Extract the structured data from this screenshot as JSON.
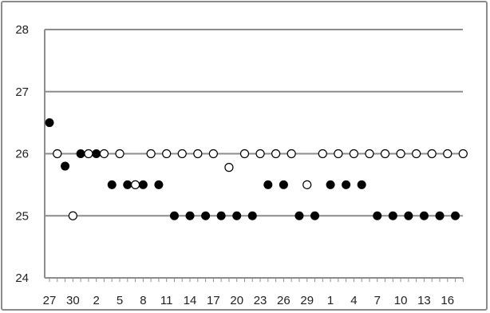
{
  "chart_data": {
    "type": "scatter",
    "title": "",
    "xlabel": "",
    "ylabel": "",
    "ylim": [
      24,
      28
    ],
    "y_ticks": [
      "24",
      "25",
      "26",
      "27",
      "28"
    ],
    "x_tick_labels": [
      "27",
      "30",
      "2",
      "5",
      "8",
      "11",
      "14",
      "17",
      "20",
      "23",
      "26",
      "29",
      "1",
      "4",
      "7",
      "10",
      "13",
      "16"
    ],
    "grid": "horizontal",
    "x_index_count": 54,
    "series": [
      {
        "marker": "filled-circle",
        "color": "#000000",
        "x": [
          0,
          2,
          4,
          6,
          8,
          10,
          12,
          14,
          16,
          18,
          20,
          22,
          24,
          26,
          28,
          30,
          32,
          34,
          36,
          38,
          40,
          42,
          44,
          46,
          48,
          50,
          52
        ],
        "values": [
          26.5,
          25.8,
          26.0,
          26.0,
          25.5,
          25.5,
          25.5,
          25.5,
          25.0,
          25.0,
          25.0,
          25.0,
          25.0,
          25.0,
          25.5,
          25.5,
          25.0,
          25.0,
          25.5,
          25.5,
          25.5,
          25.0,
          25.0,
          25.0,
          25.0,
          25.0,
          25.0
        ]
      },
      {
        "marker": "open-circle",
        "color": "#000000",
        "x": [
          1,
          3,
          5,
          7,
          9,
          11,
          13,
          15,
          17,
          19,
          21,
          23,
          25,
          27,
          29,
          31,
          33,
          35,
          37,
          39,
          41,
          43,
          45,
          47,
          49,
          51,
          53
        ],
        "values": [
          26.0,
          25.0,
          26.0,
          26.0,
          26.0,
          25.5,
          26.0,
          26.0,
          26.0,
          26.0,
          26.0,
          25.78,
          26.0,
          26.0,
          26.0,
          26.0,
          25.5,
          26.0,
          26.0,
          26.0,
          26.0,
          26.0,
          26.0,
          26.0,
          26.0,
          26.0,
          26.0
        ]
      }
    ]
  }
}
